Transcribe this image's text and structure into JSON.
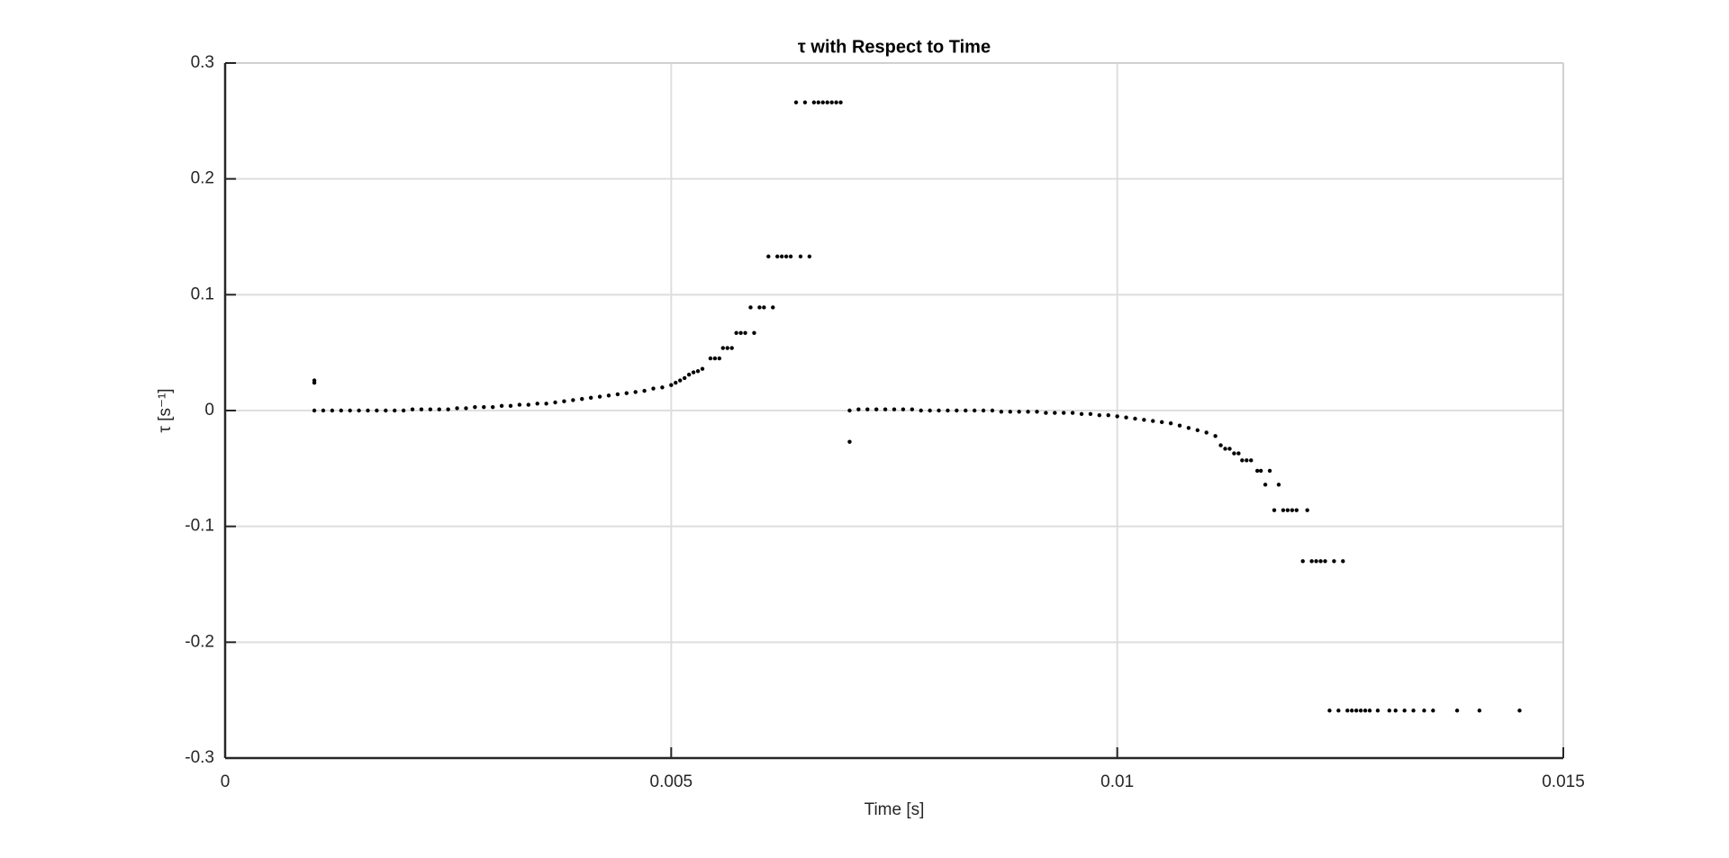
{
  "chart_data": {
    "type": "scatter",
    "title": "τ with Respect to Time",
    "xlabel": "Time [s]",
    "ylabel": "τ [s⁻¹]",
    "color": "#000000",
    "grid": true,
    "xlim": [
      0,
      0.015
    ],
    "xticks": [
      0,
      0.005,
      0.01,
      0.015
    ],
    "ylim": [
      -0.3,
      0.3
    ],
    "yticks": [
      -0.3,
      -0.2,
      -0.1,
      0,
      0.1,
      0.2,
      0.3
    ],
    "x": [
      0.001,
      0.001,
      0.001,
      0.0011,
      0.0012,
      0.0013,
      0.0014,
      0.0015,
      0.0016,
      0.0017,
      0.0018,
      0.0019,
      0.002,
      0.0021,
      0.0022,
      0.0023,
      0.0024,
      0.0025,
      0.0026,
      0.0027,
      0.0028,
      0.0029,
      0.003,
      0.0031,
      0.0032,
      0.0033,
      0.0034,
      0.0035,
      0.0036,
      0.0037,
      0.0038,
      0.0039,
      0.004,
      0.0041,
      0.0042,
      0.0043,
      0.0044,
      0.0045,
      0.0046,
      0.0047,
      0.0048,
      0.0049,
      0.005,
      0.00505,
      0.0051,
      0.00515,
      0.0052,
      0.00525,
      0.0053,
      0.00535,
      0.00544,
      0.00549,
      0.00554,
      0.00558,
      0.00563,
      0.00568,
      0.00573,
      0.00578,
      0.00583,
      0.00593,
      0.00589,
      0.00599,
      0.00604,
      0.00614,
      0.00609,
      0.00619,
      0.00624,
      0.00629,
      0.00634,
      0.00645,
      0.00655,
      0.0064,
      0.0065,
      0.0066,
      0.00665,
      0.0067,
      0.00675,
      0.0068,
      0.00685,
      0.0069,
      0.007,
      0.007,
      0.0071,
      0.0072,
      0.0073,
      0.0074,
      0.0075,
      0.0076,
      0.0077,
      0.0078,
      0.0079,
      0.008,
      0.0081,
      0.0082,
      0.0083,
      0.0084,
      0.0085,
      0.0086,
      0.0087,
      0.0088,
      0.0089,
      0.009,
      0.0091,
      0.0092,
      0.0093,
      0.0094,
      0.0095,
      0.0096,
      0.0097,
      0.0098,
      0.0099,
      0.01,
      0.0101,
      0.0102,
      0.0103,
      0.0104,
      0.0105,
      0.0106,
      0.0107,
      0.0108,
      0.0109,
      0.011,
      0.0111,
      0.01116,
      0.01121,
      0.01126,
      0.01131,
      0.01136,
      0.0114,
      0.01145,
      0.0115,
      0.01157,
      0.01161,
      0.01171,
      0.01166,
      0.01181,
      0.01176,
      0.01186,
      0.01191,
      0.01196,
      0.01201,
      0.01213,
      0.01208,
      0.01218,
      0.01223,
      0.01228,
      0.01233,
      0.01243,
      0.01253,
      0.01238,
      0.01248,
      0.01258,
      0.01263,
      0.01268,
      0.01273,
      0.01278,
      0.01283,
      0.01292,
      0.01305,
      0.01312,
      0.01322,
      0.01332,
      0.01344,
      0.01354,
      0.01381,
      0.01406,
      0.01451
    ],
    "values": [
      0.024,
      0.026,
      0,
      0,
      0,
      0,
      0,
      0,
      0,
      0,
      0,
      0,
      0,
      0.001,
      0.001,
      0.001,
      0.001,
      0.001,
      0.002,
      0.002,
      0.003,
      0.003,
      0.003,
      0.004,
      0.004,
      0.005,
      0.005,
      0.006,
      0.006,
      0.007,
      0.008,
      0.009,
      0.01,
      0.011,
      0.012,
      0.013,
      0.014,
      0.015,
      0.016,
      0.017,
      0.019,
      0.02,
      0.022,
      0.024,
      0.026,
      0.028,
      0.031,
      0.033,
      0.034,
      0.036,
      0.045,
      0.045,
      0.045,
      0.054,
      0.054,
      0.054,
      0.067,
      0.067,
      0.067,
      0.067,
      0.089,
      0.089,
      0.089,
      0.089,
      0.133,
      0.133,
      0.133,
      0.133,
      0.133,
      0.133,
      0.133,
      0.266,
      0.266,
      0.266,
      0.266,
      0.266,
      0.266,
      0.266,
      0.266,
      0.266,
      -0.027,
      0,
      0.001,
      0.001,
      0.001,
      0.001,
      0.001,
      0.001,
      0.001,
      0,
      0,
      0,
      0,
      0,
      0,
      0,
      0,
      0,
      -0.001,
      -0.001,
      -0.001,
      -0.001,
      -0.001,
      -0.002,
      -0.002,
      -0.002,
      -0.002,
      -0.003,
      -0.003,
      -0.004,
      -0.004,
      -0.005,
      -0.006,
      -0.007,
      -0.008,
      -0.009,
      -0.01,
      -0.011,
      -0.013,
      -0.015,
      -0.017,
      -0.019,
      -0.022,
      -0.03,
      -0.033,
      -0.033,
      -0.037,
      -0.037,
      -0.043,
      -0.043,
      -0.043,
      -0.052,
      -0.052,
      -0.052,
      -0.064,
      -0.064,
      -0.086,
      -0.086,
      -0.086,
      -0.086,
      -0.086,
      -0.086,
      -0.13,
      -0.13,
      -0.13,
      -0.13,
      -0.13,
      -0.13,
      -0.13,
      -0.259,
      -0.259,
      -0.259,
      -0.259,
      -0.259,
      -0.259,
      -0.259,
      -0.259,
      -0.259,
      -0.259,
      -0.259,
      -0.259,
      -0.259,
      -0.259,
      -0.259,
      -0.259,
      -0.259,
      -0.259
    ]
  }
}
